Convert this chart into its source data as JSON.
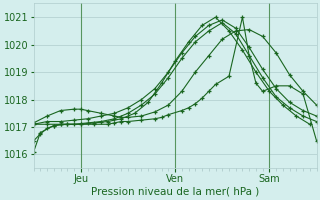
{
  "xlabel": "Pression niveau de la mer( hPa )",
  "bg_color": "#d4eeed",
  "grid_color": "#b0cccc",
  "line_color": "#1a6620",
  "vline_color": "#2d7a2d",
  "ylim": [
    1015.5,
    1021.5
  ],
  "xlim": [
    0,
    84
  ],
  "yticks": [
    1016,
    1017,
    1018,
    1019,
    1020,
    1021
  ],
  "xtick_positions": [
    14,
    42,
    70
  ],
  "xtick_labels": [
    "Jeu",
    "Ven",
    "Sam"
  ],
  "vlines": [
    14,
    42,
    70
  ],
  "series": [
    [
      [
        0,
        2,
        6,
        10,
        14,
        18,
        22,
        26,
        30,
        34,
        38,
        42,
        46,
        50,
        54,
        58,
        62,
        66,
        70,
        74,
        78,
        82
      ],
      [
        1016.1,
        1016.8,
        1017.05,
        1017.1,
        1017.1,
        1017.15,
        1017.2,
        1017.3,
        1017.5,
        1017.9,
        1018.6,
        1019.4,
        1020.1,
        1020.7,
        1021.0,
        1020.5,
        1019.8,
        1019.0,
        1018.3,
        1017.8,
        1017.4,
        1017.1
      ]
    ],
    [
      [
        0,
        4,
        8,
        12,
        16,
        20,
        24,
        28,
        32,
        36,
        40,
        44,
        48,
        52,
        56,
        60,
        64,
        68,
        72,
        76,
        80,
        84
      ],
      [
        1017.1,
        1017.1,
        1017.1,
        1017.1,
        1017.15,
        1017.2,
        1017.3,
        1017.5,
        1017.8,
        1018.2,
        1018.8,
        1019.5,
        1020.1,
        1020.5,
        1020.8,
        1020.4,
        1019.6,
        1018.8,
        1018.1,
        1017.7,
        1017.4,
        1017.2
      ]
    ],
    [
      [
        0,
        4,
        8,
        12,
        16,
        20,
        24,
        28,
        32,
        36,
        40,
        44,
        48,
        52,
        56,
        60,
        64,
        68,
        72,
        76,
        80,
        84
      ],
      [
        1017.1,
        1017.2,
        1017.2,
        1017.25,
        1017.3,
        1017.4,
        1017.5,
        1017.7,
        1018.0,
        1018.4,
        1019.0,
        1019.7,
        1020.3,
        1020.7,
        1020.9,
        1020.6,
        1019.9,
        1019.1,
        1018.4,
        1017.9,
        1017.6,
        1017.4
      ]
    ],
    [
      [
        0,
        4,
        8,
        12,
        14,
        16,
        20,
        24,
        26,
        28,
        32,
        36,
        40,
        44,
        48,
        52,
        56,
        60,
        64,
        68,
        72,
        76,
        80,
        84
      ],
      [
        1017.15,
        1017.4,
        1017.6,
        1017.65,
        1017.65,
        1017.6,
        1017.5,
        1017.4,
        1017.35,
        1017.35,
        1017.4,
        1017.55,
        1017.8,
        1018.3,
        1019.0,
        1019.6,
        1020.2,
        1020.5,
        1020.55,
        1020.3,
        1019.7,
        1018.9,
        1018.3,
        1017.8
      ]
    ],
    [
      [
        0,
        2,
        4,
        6,
        8,
        10,
        14,
        18,
        22,
        24,
        26,
        28,
        32,
        36,
        38,
        40,
        44,
        46,
        48,
        50,
        52,
        54,
        58,
        62,
        64,
        66,
        68,
        72,
        76,
        80,
        84
      ],
      [
        1016.5,
        1016.75,
        1016.95,
        1017.05,
        1017.1,
        1017.1,
        1017.1,
        1017.1,
        1017.1,
        1017.15,
        1017.2,
        1017.2,
        1017.25,
        1017.3,
        1017.35,
        1017.45,
        1017.6,
        1017.7,
        1017.85,
        1018.05,
        1018.3,
        1018.55,
        1018.85,
        1021.0,
        1019.6,
        1018.6,
        1018.3,
        1018.5,
        1018.5,
        1018.2,
        1016.5
      ]
    ]
  ]
}
